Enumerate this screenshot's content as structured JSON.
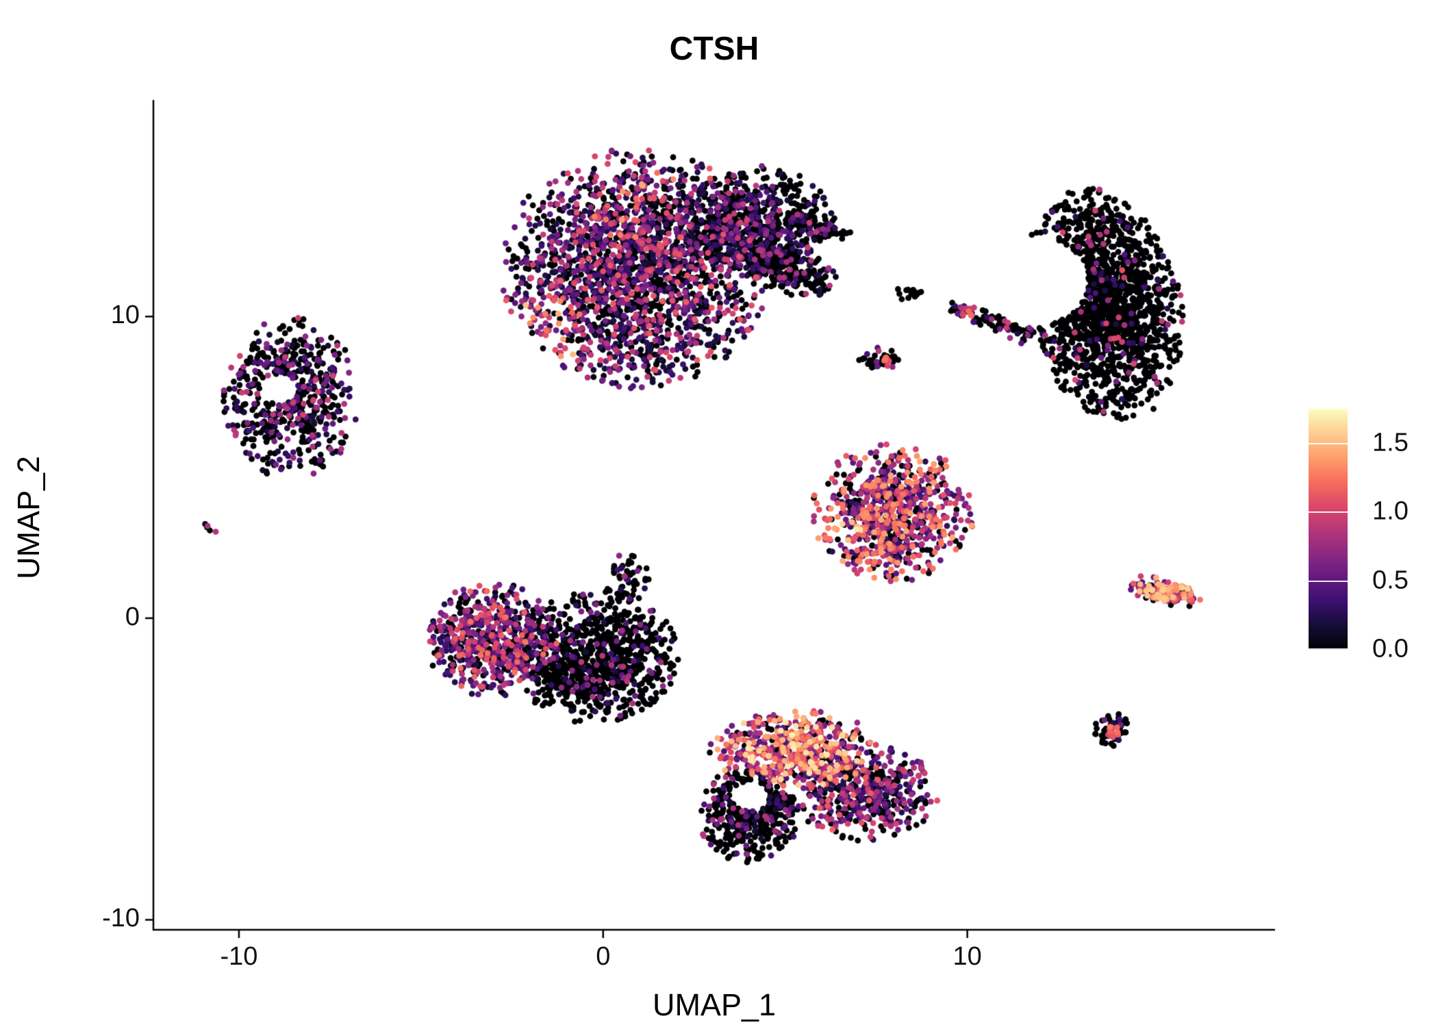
{
  "chart_data": {
    "type": "scatter",
    "title": "CTSH",
    "xlabel": "UMAP_1",
    "ylabel": "UMAP_2",
    "xlim": [
      -12.35,
      18.45
    ],
    "ylim": [
      -10.33,
      17.18
    ],
    "grid": false,
    "background": "#FFFFFF",
    "axis_color": "#000000",
    "point_radius_px": 4.4,
    "x_ticks": [
      {
        "value": -10,
        "label": "-10"
      },
      {
        "value": 0,
        "label": "0"
      },
      {
        "value": 10,
        "label": "10"
      }
    ],
    "y_ticks": [
      {
        "value": 10,
        "label": "10"
      },
      {
        "value": 0,
        "label": "0"
      },
      {
        "value": -10,
        "label": "-10"
      }
    ],
    "colorbar": {
      "min": 0,
      "max": 1.755,
      "ticks": [
        {
          "value": 1.5,
          "label": "1.5"
        },
        {
          "value": 1.0,
          "label": "1.0"
        },
        {
          "value": 0.5,
          "label": "0.5"
        },
        {
          "value": 0.0,
          "label": "0.0"
        }
      ],
      "palette": "magma",
      "stops": [
        {
          "t": 0.0,
          "c": "#000004"
        },
        {
          "t": 0.1,
          "c": "#140E36"
        },
        {
          "t": 0.2,
          "c": "#3B0F70"
        },
        {
          "t": 0.3,
          "c": "#641A80"
        },
        {
          "t": 0.4,
          "c": "#8C2981"
        },
        {
          "t": 0.5,
          "c": "#B73779"
        },
        {
          "t": 0.6,
          "c": "#DE4968"
        },
        {
          "t": 0.7,
          "c": "#F76F5C"
        },
        {
          "t": 0.8,
          "c": "#FE9F6D"
        },
        {
          "t": 0.9,
          "c": "#FECE91"
        },
        {
          "t": 1.0,
          "c": "#FCFDBF"
        }
      ]
    },
    "clusters": [
      {
        "name": "top-main",
        "cx": 0.9,
        "cy": 11.6,
        "rx": 1.85,
        "ry": 2.0,
        "n": 2100,
        "zero": 0.42,
        "vmin": 0.15,
        "vmax": 1.15,
        "skew": 1.6,
        "hotspots": [
          {
            "x": -1.7,
            "y": 9.5,
            "r": 1.2,
            "vmin": 0.6,
            "vmax": 1.55,
            "p": 0.45
          },
          {
            "x": 0.3,
            "y": 13.4,
            "r": 1.0,
            "vmin": 0.5,
            "vmax": 1.4,
            "p": 0.18
          },
          {
            "x": 1.4,
            "y": 14.6,
            "r": 0.7,
            "vmin": 0.8,
            "vmax": 1.5,
            "p": 0.25
          }
        ]
      },
      {
        "name": "top-right-lobe",
        "cx": 4.2,
        "cy": 13.2,
        "rx": 1.1,
        "ry": 0.9,
        "n": 600,
        "zero": 0.72,
        "vmin": 0.15,
        "vmax": 1.0,
        "skew": 1.5
      },
      {
        "name": "top-arm",
        "cx": 4.9,
        "cy": 11.6,
        "rx": 0.85,
        "ry": 0.4,
        "angle": -20,
        "n": 260,
        "zero": 0.8,
        "vmin": 0.15,
        "vmax": 0.95,
        "skew": 1.5
      },
      {
        "name": "top-arm-tail",
        "cx": 5.9,
        "cy": 12.9,
        "rx": 0.5,
        "ry": 0.16,
        "angle": -12,
        "n": 60,
        "zero": 0.85,
        "vmin": 0.2,
        "vmax": 0.9,
        "skew": 1.4
      },
      {
        "name": "left-upper",
        "cx": -8.6,
        "cy": 7.3,
        "rx": 0.95,
        "ry": 1.35,
        "n": 520,
        "zero": 0.62,
        "vmin": 0.15,
        "vmax": 1.0,
        "skew": 1.4,
        "hole": {
          "x": -8.9,
          "y": 7.6,
          "r": 0.5
        }
      },
      {
        "name": "left-tiny",
        "cx": -10.8,
        "cy": 3.0,
        "rx": 0.12,
        "ry": 0.1,
        "n": 5,
        "zero": 0.5,
        "vmin": 0.5,
        "vmax": 1.0,
        "skew": 1.0
      },
      {
        "name": "mid-left-expressing",
        "cx": -3.05,
        "cy": -0.7,
        "rx": 0.92,
        "ry": 0.95,
        "n": 620,
        "zero": 0.3,
        "vmin": 0.2,
        "vmax": 1.25,
        "skew": 1.4
      },
      {
        "name": "mid-left-dark",
        "cx": -0.2,
        "cy": -1.3,
        "rx": 1.15,
        "ry": 1.1,
        "n": 850,
        "zero": 0.86,
        "vmin": 0.15,
        "vmax": 0.9,
        "skew": 1.6
      },
      {
        "name": "mid-peak",
        "cx": 0.65,
        "cy": 1.3,
        "rx": 0.3,
        "ry": 0.5,
        "n": 50,
        "zero": 0.8,
        "vmin": 0.2,
        "vmax": 0.9,
        "skew": 1.5
      },
      {
        "name": "center-right",
        "cx": 7.95,
        "cy": 3.5,
        "rx": 1.12,
        "ry": 1.15,
        "n": 760,
        "zero": 0.22,
        "vmin": 0.25,
        "vmax": 1.45,
        "skew": 1.1,
        "hotspots": [
          {
            "x": 6.3,
            "y": 2.7,
            "r": 0.8,
            "vmin": 0.8,
            "vmax": 1.7,
            "p": 0.5
          }
        ]
      },
      {
        "name": "bottom-upper",
        "cx": 5.25,
        "cy": -4.3,
        "rx": 1.17,
        "ry": 0.65,
        "n": 520,
        "zero": 0.18,
        "vmin": 0.3,
        "vmax": 1.7,
        "skew": 1.0
      },
      {
        "name": "bottom-right",
        "cx": 7.2,
        "cy": -5.8,
        "rx": 1.0,
        "ry": 0.8,
        "n": 430,
        "zero": 0.4,
        "vmin": 0.2,
        "vmax": 1.2,
        "skew": 1.3
      },
      {
        "name": "bottom-dark",
        "cx": 4.0,
        "cy": -6.5,
        "rx": 0.7,
        "ry": 0.8,
        "n": 380,
        "zero": 0.85,
        "vmin": 0.15,
        "vmax": 0.9,
        "skew": 1.5,
        "hole": {
          "x": 4.05,
          "y": -5.9,
          "r": 0.5
        }
      },
      {
        "name": "right-crescent",
        "cx": 13.75,
        "cy": 10.4,
        "rx": 1.07,
        "ry": 1.95,
        "angle": 10,
        "n": 1450,
        "zero": 0.93,
        "vmin": 0.2,
        "vmax": 1.1,
        "skew": 1.3,
        "hole": {
          "x": 11.8,
          "y": 11.2,
          "r": 1.5
        }
      },
      {
        "name": "tiny-pair",
        "cx": 8.4,
        "cy": 10.75,
        "rx": 0.22,
        "ry": 0.18,
        "n": 13,
        "zero": 1.0,
        "vmin": 0.0,
        "vmax": 0.0,
        "skew": 1.0
      },
      {
        "name": "diagonal-streak",
        "line": {
          "x1": 9.5,
          "y1": 10.35,
          "x2": 11.75,
          "y2": 9.4
        },
        "w": 0.14,
        "n": 95,
        "zero": 0.82,
        "vmin": 0.2,
        "vmax": 1.0,
        "skew": 1.3,
        "hotspots": [
          {
            "x": 10.05,
            "y": 10.12,
            "r": 0.25,
            "vmin": 0.8,
            "vmax": 1.3,
            "p": 0.8
          }
        ]
      },
      {
        "name": "small-clump",
        "cx": 7.6,
        "cy": 8.6,
        "rx": 0.3,
        "ry": 0.22,
        "n": 42,
        "zero": 0.88,
        "vmin": 0.3,
        "vmax": 1.1,
        "skew": 1.0,
        "hotspots": [
          {
            "x": 7.8,
            "y": 8.5,
            "r": 0.15,
            "vmin": 0.9,
            "vmax": 1.25,
            "p": 0.9
          }
        ]
      },
      {
        "name": "right-small",
        "cx": 15.35,
        "cy": 0.9,
        "rx": 0.55,
        "ry": 0.22,
        "angle": -18,
        "n": 140,
        "zero": 0.12,
        "vmin": 0.4,
        "vmax": 1.6,
        "skew": 0.9
      },
      {
        "name": "bottom-right-tiny",
        "cx": 14.0,
        "cy": -3.7,
        "rx": 0.26,
        "ry": 0.28,
        "n": 60,
        "zero": 0.8,
        "vmin": 0.2,
        "vmax": 0.8,
        "skew": 1.3,
        "hotspots": [
          {
            "x": 14.0,
            "y": -3.75,
            "r": 0.2,
            "vmin": 0.9,
            "vmax": 1.3,
            "p": 0.7
          }
        ]
      }
    ]
  }
}
